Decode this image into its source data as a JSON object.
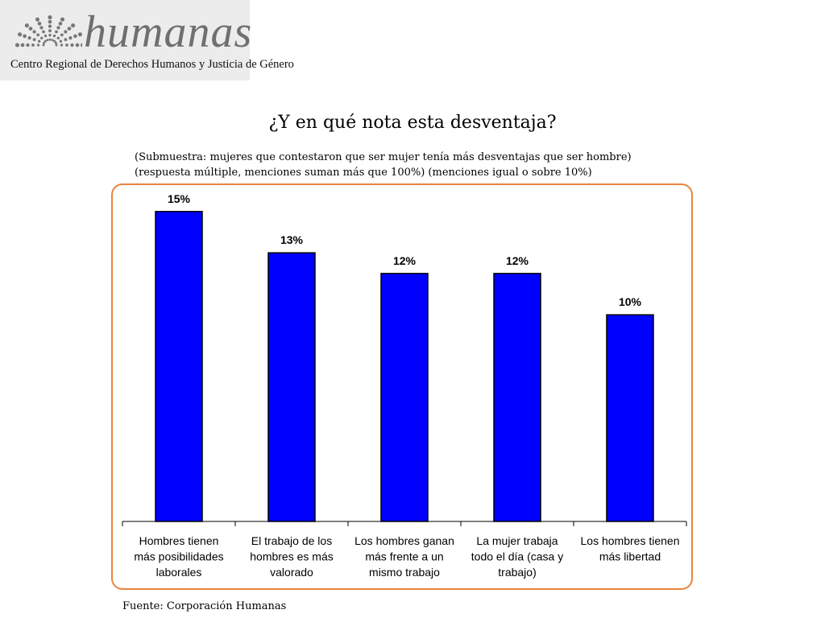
{
  "logo": {
    "wordmark": "humanas",
    "subtitle": "Centro Regional de Derechos Humanos y Justicia de Género",
    "colors": {
      "background": "#ececec",
      "wordmark": "#6f6f6f",
      "dots": "#777777"
    }
  },
  "title": "¿Y en qué nota esta desventaja?",
  "subtitle_lines": [
    "(Submuestra: mujeres que contestaron que ser mujer tenía más desventajas que ser hombre)",
    "(respuesta múltiple, menciones suman más que 100%) (menciones igual o sobre 10%)"
  ],
  "source": "Fuente: Corporación Humanas",
  "colors": {
    "bar": "#0000ff",
    "frame": "#e8843c",
    "text": "#000000"
  },
  "chart_data": {
    "type": "bar",
    "title": "¿Y en qué nota esta desventaja?",
    "categories": [
      "Hombres tienen más posibilidades laborales",
      "El trabajo de los hombres es más valorado",
      "Los hombres ganan más frente a un mismo trabajo",
      "La mujer trabaja todo el día (casa y trabajo)",
      "Los hombres tienen más libertad"
    ],
    "category_lines": [
      [
        "Hombres tienen",
        "más posibilidades",
        "laborales"
      ],
      [
        "El trabajo de los",
        "hombres es más",
        "valorado"
      ],
      [
        "Los hombres ganan",
        "más frente a un",
        "mismo trabajo"
      ],
      [
        "La mujer trabaja",
        "todo el día (casa y",
        "trabajo)"
      ],
      [
        "Los hombres tienen",
        "más libertad"
      ]
    ],
    "values": [
      15,
      13,
      12,
      12,
      10
    ],
    "data_labels": [
      "15%",
      "13%",
      "12%",
      "12%",
      "10%"
    ],
    "unit": "%",
    "ylim": [
      0,
      15.5
    ],
    "grid": false,
    "legend": "none"
  }
}
